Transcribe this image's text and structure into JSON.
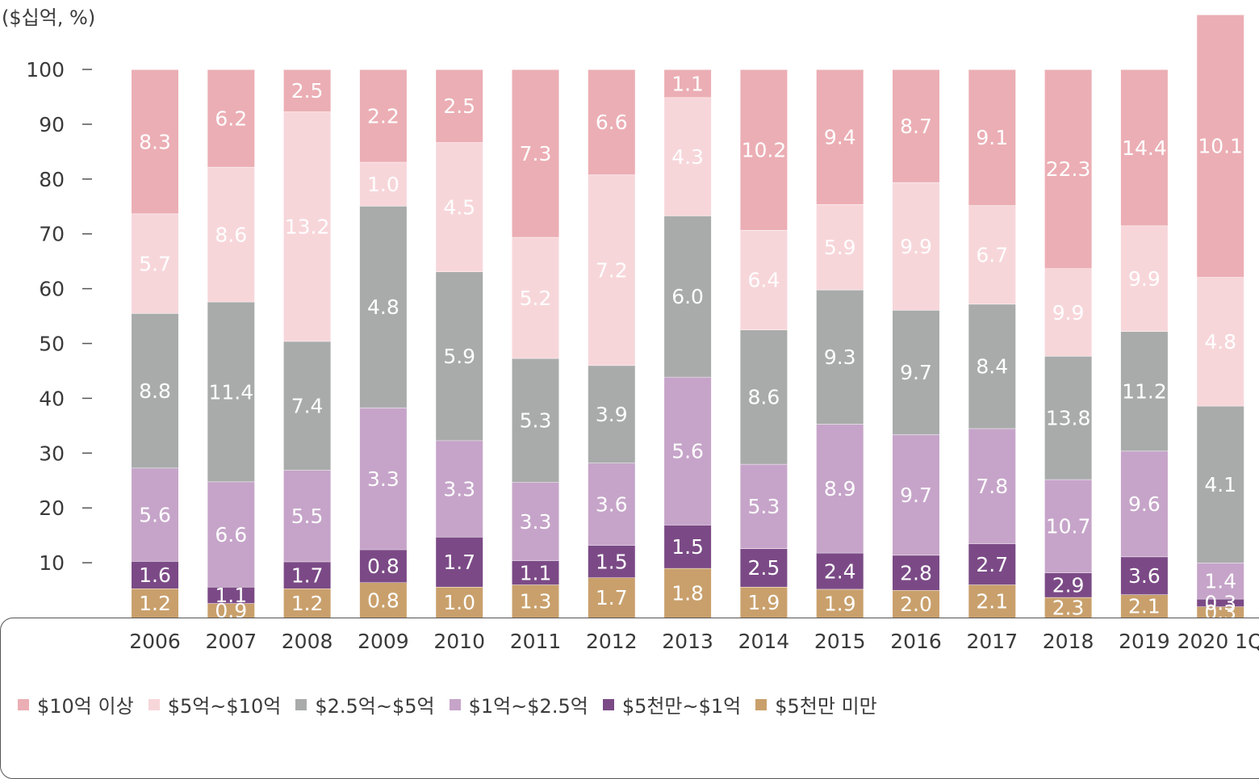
{
  "chart_data": {
    "type": "bar",
    "stacked": true,
    "unit_label": "($십억, %)",
    "categories": [
      "2006",
      "2007",
      "2008",
      "2009",
      "2010",
      "2011",
      "2012",
      "2013",
      "2014",
      "2015",
      "2016",
      "2017",
      "2018",
      "2019",
      "2020 1Q"
    ],
    "ylim": [
      0,
      100
    ],
    "yticks": [
      "10",
      "20",
      "30",
      "40",
      "50",
      "60",
      "70",
      "80",
      "90",
      "100"
    ],
    "series": [
      {
        "name": "$5천만 미만",
        "color": "#c9a06c",
        "percent": [
          5.3,
          2.6,
          5.3,
          6.4,
          5.6,
          6.0,
          7.3,
          9.0,
          5.6,
          5.2,
          5.0,
          6.0,
          3.7,
          4.2,
          2.0
        ],
        "labels": [
          "1.2",
          "0.9",
          "1.2",
          "0.8",
          "1.0",
          "1.3",
          "1.7",
          "1.8",
          "1.9",
          "1.9",
          "2.0",
          "2.1",
          "2.3",
          "2.1",
          "0.3"
        ]
      },
      {
        "name": "$5천만~$1억",
        "color": "#7b4a86",
        "percent": [
          5.0,
          3.0,
          4.9,
          6.0,
          9.1,
          4.4,
          5.9,
          7.9,
          7.0,
          6.6,
          6.4,
          7.5,
          4.5,
          6.9,
          1.4
        ],
        "labels": [
          "1.6",
          "1.1",
          "1.7",
          "0.8",
          "1.7",
          "1.1",
          "1.5",
          "1.5",
          "2.5",
          "2.4",
          "2.8",
          "2.7",
          "2.9",
          "3.6",
          "0.3"
        ]
      },
      {
        "name": "$1억~$2.5억",
        "color": "#c6a4c9",
        "percent": [
          17.0,
          19.2,
          16.7,
          25.9,
          17.6,
          14.3,
          15.0,
          27.0,
          15.4,
          23.5,
          22.0,
          21.0,
          17.0,
          19.3,
          6.6
        ],
        "labels": [
          "5.6",
          "6.6",
          "5.5",
          "3.3",
          "3.3",
          "3.3",
          "3.6",
          "5.6",
          "5.3",
          "8.9",
          "9.7",
          "7.8",
          "10.7",
          "9.6",
          "1.4"
        ]
      },
      {
        "name": "$2.5억~$5억",
        "color": "#a9abab",
        "percent": [
          28.2,
          32.8,
          23.5,
          36.8,
          30.8,
          22.6,
          17.8,
          29.4,
          24.5,
          24.5,
          22.7,
          22.7,
          22.5,
          21.8,
          28.6
        ],
        "labels": [
          "8.8",
          "11.4",
          "7.4",
          "4.8",
          "5.9",
          "5.3",
          "3.9",
          "6.0",
          "8.6",
          "9.3",
          "9.7",
          "8.4",
          "13.8",
          "11.2",
          "4.1"
        ]
      },
      {
        "name": "$5억~$10억",
        "color": "#f7d6da",
        "percent": [
          18.2,
          24.6,
          41.9,
          8.0,
          23.6,
          22.1,
          34.8,
          21.6,
          18.2,
          15.6,
          23.3,
          18.0,
          16.0,
          19.3,
          23.5
        ],
        "labels": [
          "5.7",
          "8.6",
          "13.2",
          "1.0",
          "4.5",
          "5.2",
          "7.2",
          "4.3",
          "6.4",
          "5.9",
          "9.9",
          "6.7",
          "9.9",
          "9.9",
          "4.8"
        ]
      },
      {
        "name": "$10억 이상",
        "color": "#ebaeb4",
        "percent": [
          26.3,
          17.8,
          7.7,
          16.9,
          13.3,
          30.6,
          19.2,
          5.1,
          29.3,
          24.6,
          20.6,
          24.8,
          36.3,
          28.5,
          47.9
        ],
        "labels": [
          "8.3",
          "6.2",
          "2.5",
          "2.2",
          "2.5",
          "7.3",
          "6.6",
          "1.1",
          "10.2",
          "9.4",
          "8.7",
          "9.1",
          "22.3",
          "14.4",
          "10.1"
        ]
      }
    ],
    "legend_position": "bottom",
    "grid": false
  }
}
